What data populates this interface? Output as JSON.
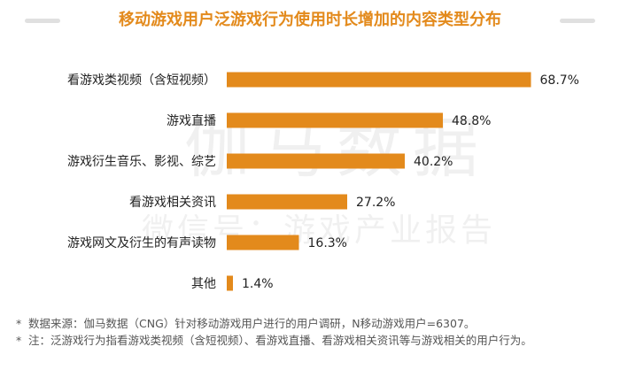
{
  "header": {
    "title": "移动游戏用户泛游戏行为使用时长增加的内容类型分布"
  },
  "colors": {
    "accent": "#e38a1c",
    "title": "#e38a1c",
    "deco_line": "#e0e0e0"
  },
  "watermark": {
    "main": "伽马数据",
    "sub": "微信号：游戏产业报告"
  },
  "chart_data": {
    "type": "bar",
    "orientation": "horizontal",
    "title": "移动游戏用户泛游戏行为使用时长增加的内容类型分布",
    "categories": [
      "看游戏类视频（含短视频）",
      "游戏直播",
      "游戏衍生音乐、影视、综艺",
      "看游戏相关资讯",
      "游戏网文及衍生的有声读物",
      "其他"
    ],
    "values": [
      68.7,
      48.8,
      40.2,
      27.2,
      16.3,
      1.4
    ],
    "value_labels": [
      "68.7%",
      "48.8%",
      "40.2%",
      "27.2%",
      "16.3%",
      "1.4%"
    ],
    "unit": "%",
    "xlim": [
      0,
      100
    ],
    "grid": false,
    "legend": "none",
    "bar_color": "#e38a1c"
  },
  "footnotes": [
    {
      "star": "*",
      "text": "数据来源：伽马数据（CNG）针对移动游戏用户进行的用户调研，N移动游戏用户=6307。"
    },
    {
      "star": "*",
      "text": "注：泛游戏行为指看游戏类视频（含短视频）、看游戏直播、看游戏相关资讯等与游戏相关的用户行为。"
    }
  ]
}
